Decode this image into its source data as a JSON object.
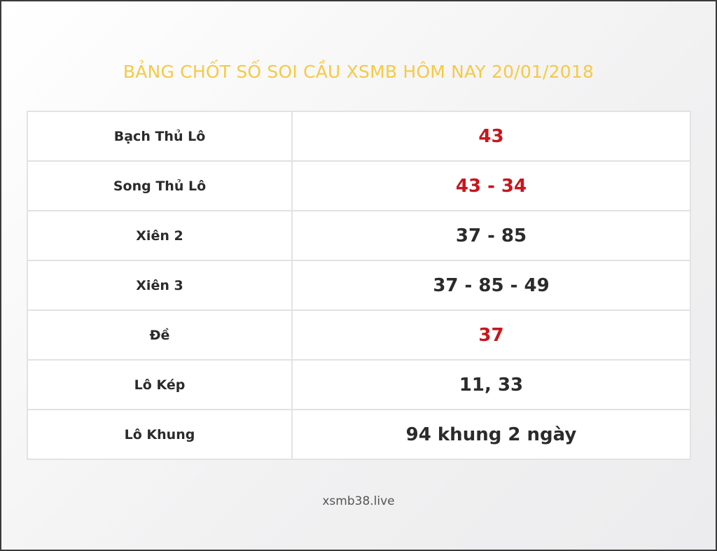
{
  "title": "BẢNG CHỐT SỐ SOI CẦU XSMB HÔM NAY 20/01/2018",
  "rows": [
    {
      "label": "Bạch Thủ Lô",
      "value": "43",
      "highlight": true
    },
    {
      "label": "Song Thủ Lô",
      "value": "43 - 34",
      "highlight": true
    },
    {
      "label": "Xiên 2",
      "value": "37 - 85",
      "highlight": false
    },
    {
      "label": "Xiên 3",
      "value": "37 - 85 - 49",
      "highlight": false
    },
    {
      "label": "Đề",
      "value": "37",
      "highlight": true
    },
    {
      "label": "Lô Kép",
      "value": "11, 33",
      "highlight": false
    },
    {
      "label": "Lô Khung",
      "value": "94 khung 2 ngày",
      "highlight": false
    }
  ],
  "footer": "xsmb38.live",
  "colors": {
    "title": "#f6c945",
    "highlight": "#c8161d",
    "text": "#2b2b2b"
  }
}
